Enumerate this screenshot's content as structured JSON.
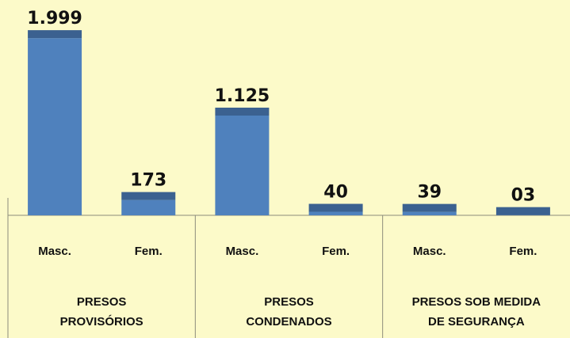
{
  "chart_data": {
    "type": "bar",
    "categories": [
      "Masc.",
      "Fem.",
      "Masc.",
      "Fem.",
      "Masc.",
      "Fem."
    ],
    "values": [
      1999,
      173,
      1125,
      40,
      39,
      3
    ],
    "value_labels": [
      "1.999",
      "173",
      "1.125",
      "40",
      "39",
      "03"
    ],
    "groups": [
      [
        "PRESOS",
        "PROVISÓRIOS"
      ],
      [
        "PRESOS",
        "CONDENADOS"
      ],
      [
        "PRESOS SOB MEDIDA",
        "DE SEGURANÇA"
      ]
    ],
    "color": "#4f81bd",
    "cap_color": "#3b6190"
  }
}
